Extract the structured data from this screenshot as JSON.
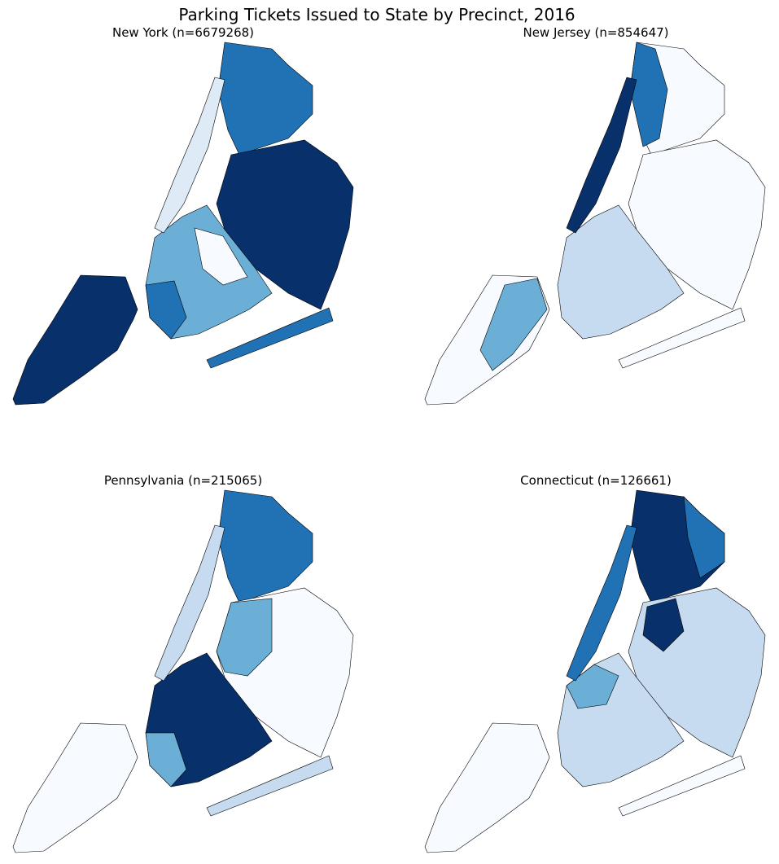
{
  "title": "Parking Tickets Issued to State by Precinct, 2016",
  "maps": [
    {
      "title": "New York (n=6679268)"
    },
    {
      "title": "New Jersey (n=854647)"
    },
    {
      "title": "Pennsylvania (n=215065)"
    },
    {
      "title": "Connecticut (n=126661)"
    }
  ]
}
